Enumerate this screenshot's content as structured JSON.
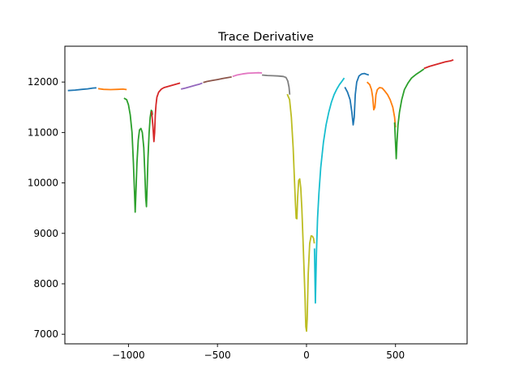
{
  "chart_data": {
    "type": "line",
    "title": "Trace Derivative",
    "xlabel": "",
    "ylabel": "",
    "xlim": [
      -1357,
      902
    ],
    "ylim": [
      6810,
      12710
    ],
    "xticks": [
      -1000,
      -500,
      0,
      500
    ],
    "xtick_labels": [
      "−1000",
      "−500",
      "0",
      "500"
    ],
    "yticks": [
      7000,
      8000,
      9000,
      10000,
      11000,
      12000
    ],
    "ytick_labels": [
      "7000",
      "8000",
      "9000",
      "10000",
      "11000",
      "12000"
    ],
    "grid": false,
    "legend": "none",
    "series": [
      {
        "color": "#1f77b4",
        "x": [
          -1340,
          -1300,
          -1260,
          -1230,
          -1200,
          -1180
        ],
        "y": [
          11830,
          11840,
          11855,
          11865,
          11880,
          11885
        ]
      },
      {
        "color": "#ff7f0e",
        "x": [
          -1170,
          -1140,
          -1100,
          -1060,
          -1030,
          -1010
        ],
        "y": [
          11870,
          11855,
          11850,
          11855,
          11860,
          11850
        ]
      },
      {
        "color": "#2ca02c",
        "x": [
          -1025,
          -1010,
          -1000,
          -990,
          -980,
          -972,
          -966,
          -962,
          -958,
          -952,
          -945,
          -938,
          -930,
          -922,
          -914,
          -908,
          -903,
          -899,
          -895,
          -890,
          -884,
          -878,
          -872,
          -868,
          -865
        ],
        "y": [
          11680,
          11650,
          11550,
          11350,
          11000,
          10400,
          9800,
          9420,
          9800,
          10400,
          10850,
          11050,
          11080,
          11000,
          10700,
          10200,
          9700,
          9530,
          9900,
          10500,
          11000,
          11300,
          11440,
          11420,
          11350
        ]
      },
      {
        "color": "#d62728",
        "x": [
          -870,
          -862,
          -857,
          -853,
          -849,
          -845,
          -840,
          -830,
          -815,
          -800,
          -780,
          -760,
          -740,
          -720,
          -710
        ],
        "y": [
          11420,
          11100,
          10820,
          11000,
          11350,
          11550,
          11700,
          11800,
          11860,
          11890,
          11910,
          11930,
          11950,
          11970,
          11980
        ]
      },
      {
        "color": "#9467bd",
        "x": [
          -705,
          -680,
          -660,
          -640,
          -620,
          -600,
          -585
        ],
        "y": [
          11860,
          11880,
          11900,
          11920,
          11940,
          11960,
          11980
        ]
      },
      {
        "color": "#8c564b",
        "x": [
          -580,
          -560,
          -530,
          -500,
          -470,
          -440,
          -420
        ],
        "y": [
          11990,
          12010,
          12030,
          12050,
          12070,
          12090,
          12100
        ]
      },
      {
        "color": "#e377c2",
        "x": [
          -415,
          -390,
          -360,
          -330,
          -300,
          -270,
          -250
        ],
        "y": [
          12110,
          12140,
          12160,
          12175,
          12180,
          12185,
          12180
        ]
      },
      {
        "color": "#7f7f7f",
        "x": [
          -250,
          -220,
          -190,
          -160,
          -130,
          -115,
          -105,
          -98,
          -94
        ],
        "y": [
          12140,
          12130,
          12125,
          12120,
          12110,
          12090,
          12020,
          11900,
          11750
        ]
      },
      {
        "color": "#bcbd22",
        "x": [
          -108,
          -95,
          -85,
          -75,
          -68,
          -62,
          -58,
          -54,
          -50,
          -44,
          -38,
          -32,
          -26,
          -20,
          -14,
          -8,
          -4,
          0,
          4,
          10,
          18,
          26,
          34,
          40,
          44
        ],
        "y": [
          11760,
          11650,
          11300,
          10700,
          10100,
          9600,
          9300,
          9290,
          9700,
          10050,
          10080,
          9900,
          9500,
          8900,
          8300,
          7700,
          7150,
          7060,
          7300,
          8200,
          8800,
          8950,
          8940,
          8900,
          8800
        ]
      },
      {
        "color": "#17becf",
        "x": [
          45,
          50,
          56,
          62,
          70,
          80,
          95,
          110,
          125,
          140,
          155,
          170,
          185,
          200,
          212
        ],
        "y": [
          8700,
          7620,
          8600,
          9300,
          9800,
          10300,
          10800,
          11150,
          11400,
          11600,
          11750,
          11860,
          11950,
          12020,
          12080
        ]
      },
      {
        "color": "#1f77b4",
        "x": [
          215,
          230,
          245,
          255,
          262,
          268,
          274,
          282,
          295,
          310,
          325,
          340,
          350
        ],
        "y": [
          11900,
          11800,
          11650,
          11400,
          11150,
          11300,
          11750,
          12000,
          12120,
          12160,
          12170,
          12150,
          12140
        ]
      },
      {
        "color": "#ff7f0e",
        "x": [
          340,
          355,
          365,
          372,
          378,
          384,
          390,
          398,
          410,
          425,
          440,
          455,
          470,
          485,
          495,
          500
        ],
        "y": [
          12000,
          11950,
          11850,
          11700,
          11450,
          11500,
          11750,
          11850,
          11890,
          11880,
          11820,
          11750,
          11650,
          11500,
          11300,
          11100
        ]
      },
      {
        "color": "#2ca02c",
        "x": [
          495,
          500,
          504,
          508,
          514,
          522,
          535,
          550,
          570,
          590,
          615,
          640,
          660
        ],
        "y": [
          11200,
          10800,
          10480,
          10800,
          11150,
          11400,
          11650,
          11850,
          11980,
          12080,
          12150,
          12210,
          12260
        ]
      },
      {
        "color": "#d62728",
        "x": [
          660,
          690,
          720,
          750,
          780,
          810,
          825
        ],
        "y": [
          12270,
          12310,
          12340,
          12370,
          12400,
          12420,
          12440
        ]
      }
    ]
  }
}
